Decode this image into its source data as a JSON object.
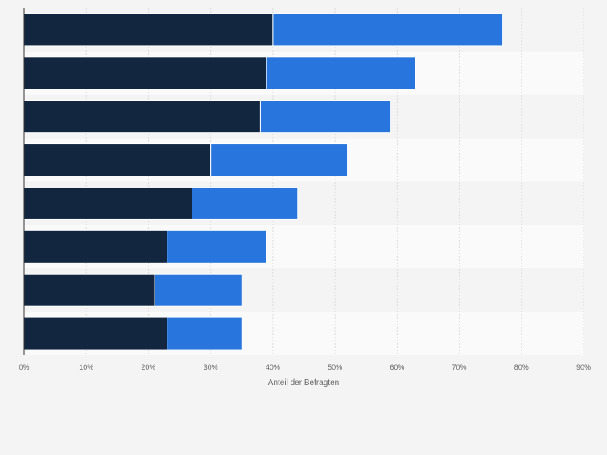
{
  "chart_data": {
    "type": "bar",
    "orientation": "horizontal",
    "stacked": true,
    "categories": [
      "",
      "",
      "",
      "",
      "",
      "",
      "",
      ""
    ],
    "series": [
      {
        "values": [
          40,
          39,
          38,
          30,
          27,
          23,
          21,
          23
        ],
        "color": "#12263f"
      },
      {
        "values": [
          37,
          24,
          21,
          22,
          17,
          16,
          14,
          12
        ],
        "color": "#2876dd"
      }
    ],
    "xlabel": "Anteil der Befragten",
    "xlim": [
      0,
      90
    ],
    "x_ticks": [
      "0%",
      "10%",
      "20%",
      "30%",
      "40%",
      "50%",
      "60%",
      "70%",
      "80%",
      "90%"
    ],
    "grid": true,
    "legend": "none"
  }
}
